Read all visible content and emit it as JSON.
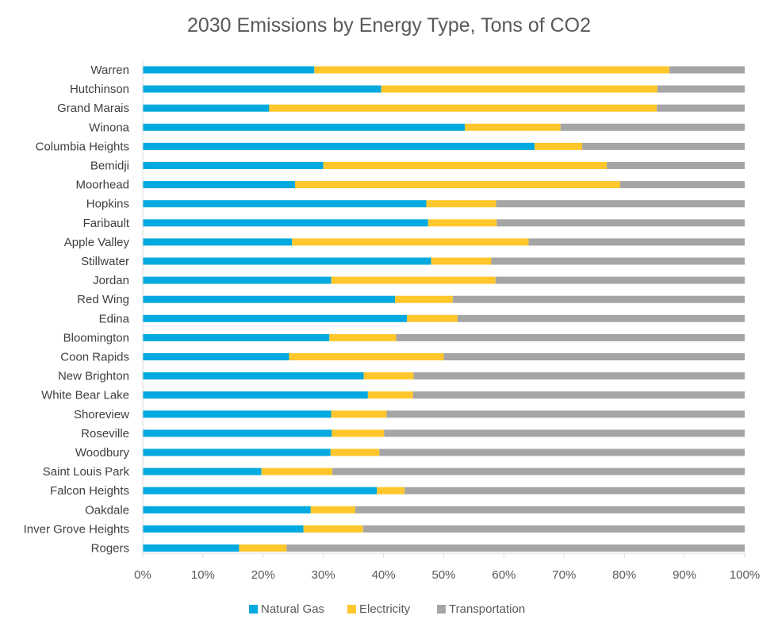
{
  "chart_data": {
    "type": "bar",
    "orientation": "horizontal",
    "stacked": "percent",
    "title": "2030 Emissions by Energy Type, Tons of CO2",
    "xlabel": "",
    "ylabel": "",
    "xlim": [
      0,
      100
    ],
    "x_ticks": [
      "0%",
      "10%",
      "20%",
      "30%",
      "40%",
      "50%",
      "60%",
      "70%",
      "80%",
      "90%",
      "100%"
    ],
    "grid": false,
    "legend_position": "bottom",
    "categories": [
      "Warren",
      "Hutchinson",
      "Grand Marais",
      "Winona",
      "Columbia Heights",
      "Bemidji",
      "Moorhead",
      "Hopkins",
      "Faribault",
      "Apple Valley",
      "Stillwater",
      "Jordan",
      "Red Wing",
      "Edina",
      "Bloomington",
      "Coon Rapids",
      "New Brighton",
      "White Bear Lake",
      "Shoreview",
      "Roseville",
      "Woodbury",
      "Saint Louis Park",
      "Falcon Heights",
      "Oakdale",
      "Inver Grove Heights",
      "Rogers"
    ],
    "series": [
      {
        "name": "Natural Gas",
        "color": "#00a9e0",
        "values": [
          28.5,
          39.6,
          21,
          53.5,
          65.1,
          30,
          25.3,
          47.1,
          47.4,
          24.8,
          47.9,
          31.3,
          41.9,
          43.9,
          31,
          24.3,
          36.7,
          37.4,
          31.3,
          31.4,
          31.2,
          19.7,
          38.9,
          27.9,
          26.7,
          16
        ]
      },
      {
        "name": "Electricity",
        "color": "#ffc72c",
        "values": [
          59,
          45.9,
          64.4,
          15.9,
          7.9,
          47.1,
          54,
          11.6,
          11.4,
          39.3,
          10,
          27.3,
          9.6,
          8.4,
          11.1,
          25.7,
          8.3,
          7.5,
          9.2,
          8.7,
          8.1,
          11.8,
          4.6,
          7.4,
          9.9,
          7.9
        ]
      },
      {
        "name": "Transportation",
        "color": "#a5a5a5",
        "values": [
          12.5,
          14.5,
          14.6,
          30.6,
          27,
          22.9,
          20.7,
          41.3,
          41.2,
          35.9,
          42.1,
          41.4,
          48.5,
          47.7,
          57.9,
          50,
          55,
          55.1,
          59.5,
          59.9,
          60.7,
          68.5,
          56.5,
          64.7,
          63.4,
          76.1
        ]
      }
    ]
  }
}
